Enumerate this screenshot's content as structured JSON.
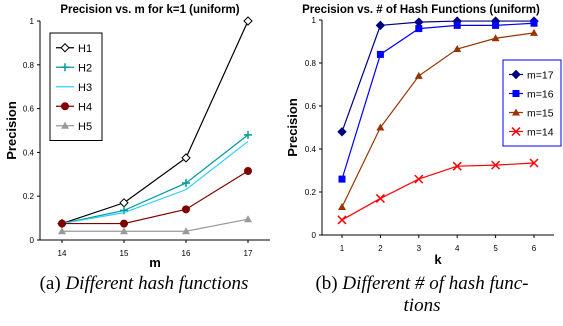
{
  "captions": {
    "a_marker": "(a)",
    "a_text": "Different hash functions",
    "b_marker": "(b)",
    "b_text_line1": "Different # of hash func-",
    "b_text_line2": "tions"
  },
  "chart_data": [
    {
      "type": "line",
      "title": "Precision  vs.  m  for k=1 (uniform)",
      "xlabel": "m",
      "ylabel": "Precision",
      "x": [
        14,
        15,
        16,
        17
      ],
      "xtick_labels": [
        "14",
        "15",
        "16",
        "17"
      ],
      "ylim": [
        0,
        1
      ],
      "ytick_labels": [
        "0",
        "0.2",
        "0.4",
        "0.6",
        "0.8",
        "1"
      ],
      "legend": "top-left",
      "grid": false,
      "series": [
        {
          "name": "H1",
          "marker": "diamond-open",
          "color": "#000000",
          "values": [
            0.075,
            0.17,
            0.375,
            1.0
          ]
        },
        {
          "name": "H2",
          "marker": "plus",
          "color": "#009999",
          "values": [
            0.075,
            0.135,
            0.26,
            0.48
          ]
        },
        {
          "name": "H3",
          "marker": "none",
          "color": "#33ccff",
          "values": [
            0.075,
            0.125,
            0.23,
            0.45
          ]
        },
        {
          "name": "H4",
          "marker": "circle",
          "color": "#800000",
          "values": [
            0.075,
            0.075,
            0.14,
            0.315
          ]
        },
        {
          "name": "H5",
          "marker": "triangle",
          "color": "#999999",
          "values": [
            0.04,
            0.04,
            0.04,
            0.095
          ]
        }
      ]
    },
    {
      "type": "line",
      "title": "Precision vs. # of Hash Functions (uniform)",
      "xlabel": "k",
      "ylabel": "Precision",
      "x": [
        1,
        2,
        3,
        4,
        5,
        6
      ],
      "xtick_labels": [
        "1",
        "2",
        "3",
        "4",
        "5",
        "6"
      ],
      "ylim": [
        0,
        1
      ],
      "ytick_labels": [
        "0",
        "0.2",
        "0.4",
        "0.6",
        "0.8",
        "1"
      ],
      "legend": "right",
      "grid": false,
      "series": [
        {
          "name": "m=17",
          "marker": "diamond",
          "color": "#000080",
          "values": [
            0.48,
            0.975,
            0.99,
            0.995,
            0.995,
            0.995
          ]
        },
        {
          "name": "m=16",
          "marker": "square",
          "color": "#0000ff",
          "values": [
            0.26,
            0.84,
            0.96,
            0.975,
            0.975,
            0.985
          ]
        },
        {
          "name": "m=15",
          "marker": "triangle",
          "color": "#993300",
          "values": [
            0.13,
            0.5,
            0.74,
            0.865,
            0.915,
            0.94
          ]
        },
        {
          "name": "m=14",
          "marker": "x",
          "color": "#ff0000",
          "values": [
            0.07,
            0.17,
            0.26,
            0.32,
            0.325,
            0.335
          ]
        }
      ]
    }
  ]
}
